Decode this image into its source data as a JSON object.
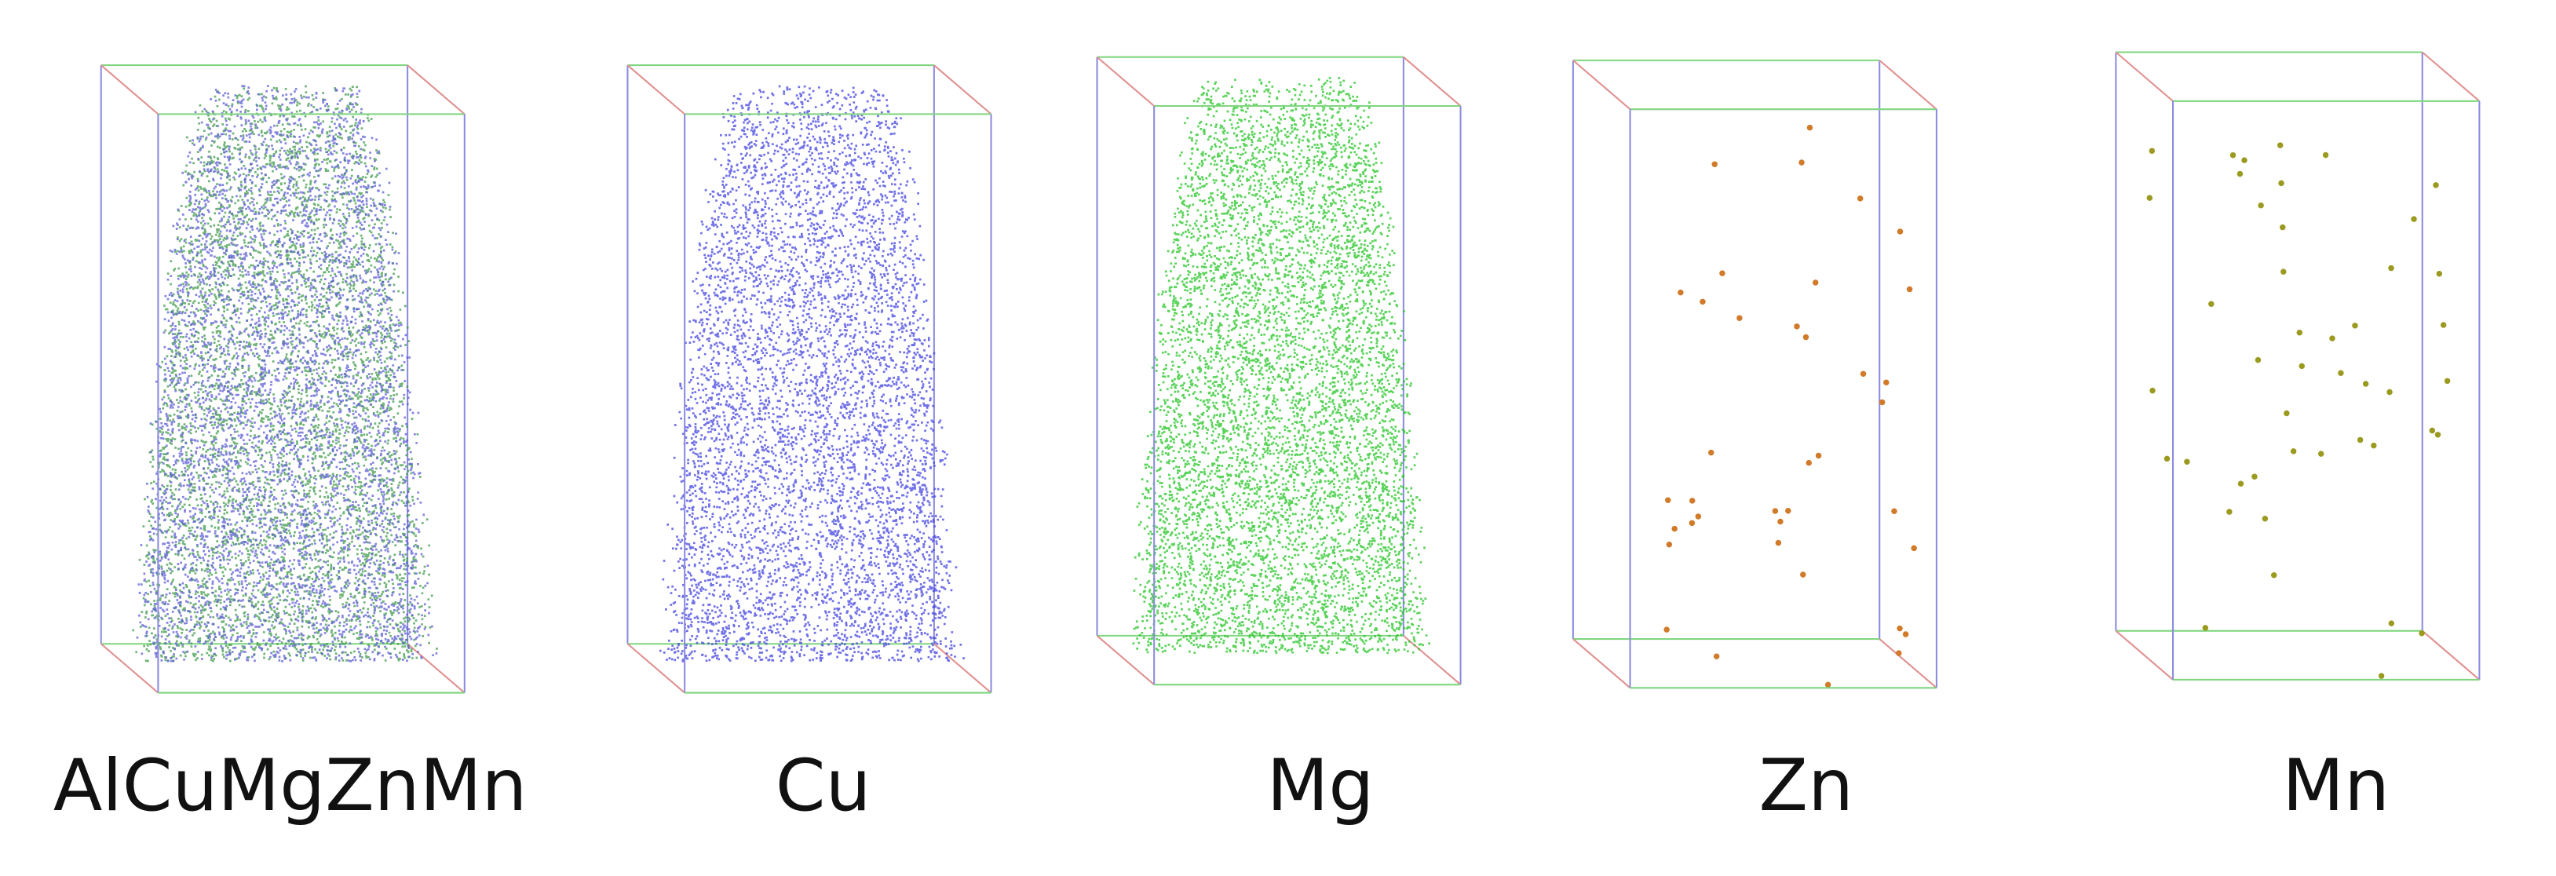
{
  "panels": [
    {
      "label": "AlCuMgZnMn"
    },
    {
      "label": "Cu"
    },
    {
      "label": "Mg"
    },
    {
      "label": "Zn"
    },
    {
      "label": "Mn"
    }
  ]
}
